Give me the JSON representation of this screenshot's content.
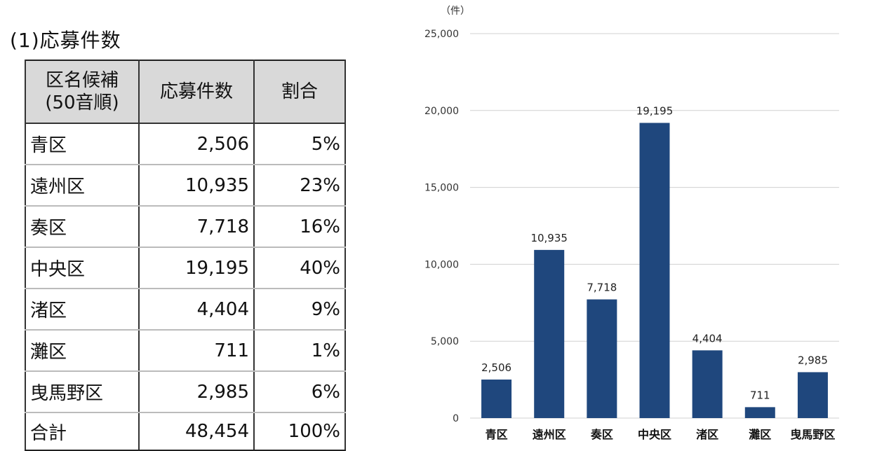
{
  "section_title": "(1)応募件数",
  "table": {
    "headers": [
      "区名候補\n(50音順)",
      "応募件数",
      "割合"
    ],
    "header_line1": "区名候補",
    "header_line2": "(50音順)",
    "rows": [
      {
        "name": "青区",
        "count": "2,506",
        "pct": "5%"
      },
      {
        "name": "遠州区",
        "count": "10,935",
        "pct": "23%"
      },
      {
        "name": "奏区",
        "count": "7,718",
        "pct": "16%"
      },
      {
        "name": "中央区",
        "count": "19,195",
        "pct": "40%"
      },
      {
        "name": "渚区",
        "count": "4,404",
        "pct": "9%"
      },
      {
        "name": "灘区",
        "count": "711",
        "pct": "1%"
      },
      {
        "name": "曳馬野区",
        "count": "2,985",
        "pct": "6%"
      }
    ],
    "total": {
      "name": "合計",
      "count": "48,454",
      "pct": "100%"
    }
  },
  "chart_data": {
    "type": "bar",
    "unit_label": "（件）",
    "categories": [
      "青区",
      "遠州区",
      "奏区",
      "中央区",
      "渚区",
      "灘区",
      "曳馬野区"
    ],
    "values": [
      2506,
      10935,
      7718,
      19195,
      4404,
      711,
      2985
    ],
    "data_labels": [
      "2,506",
      "10,935",
      "7,718",
      "19,195",
      "4,404",
      "711",
      "2,985"
    ],
    "ylim": [
      0,
      25000
    ],
    "yticks": [
      "0",
      "5,000",
      "10,000",
      "15,000",
      "20,000",
      "25,000"
    ],
    "ytick_values": [
      0,
      5000,
      10000,
      15000,
      20000,
      25000
    ],
    "grid": true,
    "bar_color": "#1f477d",
    "grid_color": "#d0d0d0"
  }
}
